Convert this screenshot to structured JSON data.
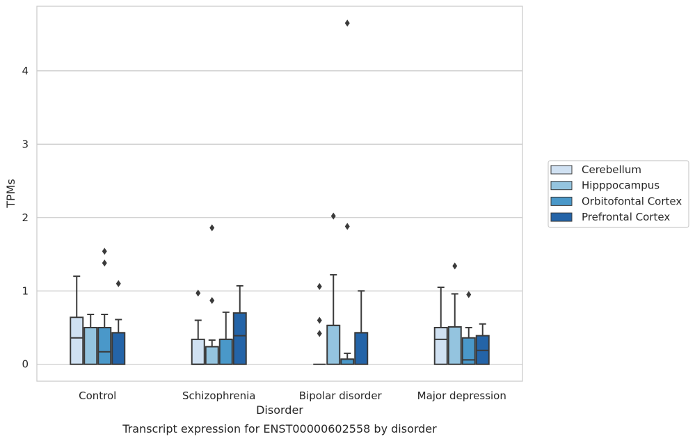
{
  "chart_data": {
    "type": "box",
    "title": "Transcript expression for ENST00000602558 by disorder",
    "xlabel": "Disorder",
    "ylabel": "TPMs",
    "ylim": [
      -0.23,
      4.88
    ],
    "yticks": [
      0,
      1,
      2,
      3,
      4
    ],
    "grid": "horizontal",
    "legend_position": "right",
    "categories": [
      "Control",
      "Schizophrenia",
      "Bipolar disorder",
      "Major depression"
    ],
    "series": [
      {
        "name": "Cerebellum",
        "color": "#d0e1f2",
        "boxes": [
          {
            "min": 0,
            "q1": 0,
            "median": 0.36,
            "q3": 0.64,
            "max": 1.2,
            "outliers": []
          },
          {
            "min": 0,
            "q1": 0,
            "median": 0.0,
            "q3": 0.34,
            "max": 0.6,
            "outliers": [
              0.97
            ]
          },
          {
            "min": 0,
            "q1": 0,
            "median": 0.0,
            "q3": 0.0,
            "max": 0.0,
            "outliers": [
              0.42,
              0.6,
              1.06
            ]
          },
          {
            "min": 0,
            "q1": 0,
            "median": 0.34,
            "q3": 0.5,
            "max": 1.05,
            "outliers": []
          }
        ]
      },
      {
        "name": "Hipppocampus",
        "color": "#94c4df",
        "boxes": [
          {
            "min": 0,
            "q1": 0,
            "median": 0.5,
            "q3": 0.5,
            "max": 0.68,
            "outliers": []
          },
          {
            "min": 0,
            "q1": 0,
            "median": 0.24,
            "q3": 0.24,
            "max": 0.33,
            "outliers": [
              0.87,
              1.86
            ]
          },
          {
            "min": 0,
            "q1": 0,
            "median": 0.53,
            "q3": 0.53,
            "max": 1.22,
            "outliers": [
              2.02
            ]
          },
          {
            "min": 0,
            "q1": 0,
            "median": 0.51,
            "q3": 0.51,
            "max": 0.96,
            "outliers": [
              1.34
            ]
          }
        ]
      },
      {
        "name": "Orbitofontal Cortex",
        "color": "#4a98c9",
        "boxes": [
          {
            "min": 0,
            "q1": 0,
            "median": 0.17,
            "q3": 0.5,
            "max": 0.68,
            "outliers": [
              1.38,
              1.54
            ]
          },
          {
            "min": 0,
            "q1": 0,
            "median": 0.34,
            "q3": 0.34,
            "max": 0.71,
            "outliers": []
          },
          {
            "min": 0,
            "q1": 0,
            "median": 0.07,
            "q3": 0.07,
            "max": 0.15,
            "outliers": [
              1.88,
              4.65
            ]
          },
          {
            "min": 0,
            "q1": 0,
            "median": 0.06,
            "q3": 0.36,
            "max": 0.5,
            "outliers": [
              0.95
            ]
          }
        ]
      },
      {
        "name": "Prefrontal Cortex",
        "color": "#2464a8",
        "boxes": [
          {
            "min": 0,
            "q1": 0,
            "median": 0.43,
            "q3": 0.43,
            "max": 0.61,
            "outliers": [
              1.1
            ]
          },
          {
            "min": 0,
            "q1": 0,
            "median": 0.39,
            "q3": 0.7,
            "max": 1.07,
            "outliers": []
          },
          {
            "min": 0,
            "q1": 0,
            "median": 0.43,
            "q3": 0.43,
            "max": 1.0,
            "outliers": []
          },
          {
            "min": 0,
            "q1": 0,
            "median": 0.19,
            "q3": 0.39,
            "max": 0.55,
            "outliers": []
          }
        ]
      }
    ]
  }
}
